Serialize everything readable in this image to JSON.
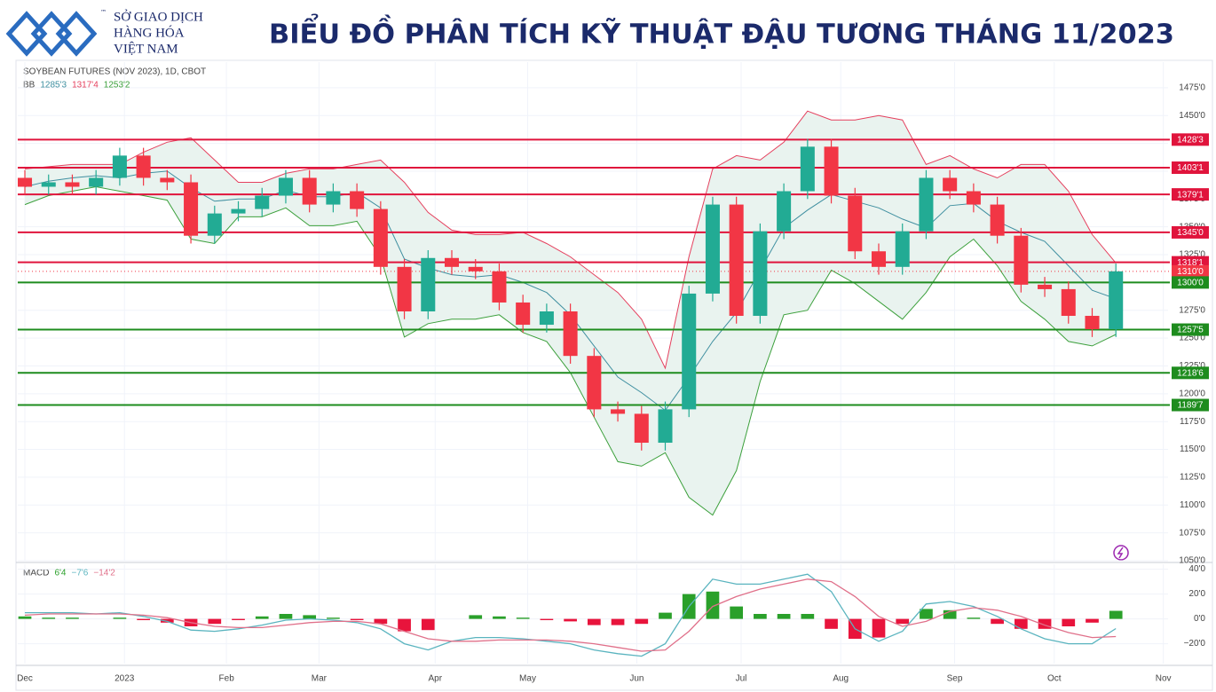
{
  "header": {
    "logo_lines": [
      "SỞ GIAO DỊCH",
      "HÀNG HÓA",
      "VIỆT NAM"
    ],
    "tm": "™",
    "title": "BIỂU ĐỒ PHÂN TÍCH KỸ THUẬT ĐẬU TƯƠNG THÁNG 11/2023"
  },
  "chart_data": [
    {
      "type": "candlestick",
      "title": "SOYBEAN FUTURES (NOV 2023), 1D, CBOT",
      "x": [
        0,
        1,
        2,
        3,
        4,
        5,
        6,
        7,
        8,
        9,
        10,
        11,
        12,
        13,
        14,
        15,
        16,
        17,
        18,
        19,
        20,
        21,
        22,
        23,
        24,
        25,
        26,
        27,
        28,
        29,
        30,
        31,
        32,
        33,
        34,
        35,
        36,
        37,
        38,
        39,
        40,
        41,
        42,
        43,
        44,
        45,
        46
      ],
      "xlim": [
        -0.3,
        48.2
      ],
      "xticks": [
        {
          "value": 0,
          "label": "Dec"
        },
        {
          "value": 4.2,
          "label": "2023"
        },
        {
          "value": 8.5,
          "label": "Feb"
        },
        {
          "value": 12.4,
          "label": "Mar"
        },
        {
          "value": 17.3,
          "label": "Apr"
        },
        {
          "value": 21.2,
          "label": "May"
        },
        {
          "value": 25.8,
          "label": "Jun"
        },
        {
          "value": 30.2,
          "label": "Jul"
        },
        {
          "value": 34.4,
          "label": "Aug"
        },
        {
          "value": 39.2,
          "label": "Sep"
        },
        {
          "value": 43.4,
          "label": "Oct"
        },
        {
          "value": 48,
          "label": "Nov"
        }
      ],
      "open": [
        1394,
        1386,
        1390,
        1386,
        1394,
        1414,
        1394,
        1390,
        1342,
        1362,
        1366,
        1378,
        1394,
        1370,
        1382,
        1366,
        1314,
        1274,
        1322,
        1314,
        1310,
        1282,
        1262,
        1274,
        1234,
        1186,
        1182,
        1156,
        1186,
        1290,
        1370,
        1270,
        1346,
        1382,
        1422,
        1378,
        1328,
        1314,
        1346,
        1394,
        1382,
        1370,
        1342,
        1298,
        1294,
        1270,
        1258
      ],
      "high": [
        1401,
        1397,
        1397,
        1401,
        1421,
        1421,
        1401,
        1397,
        1369,
        1373,
        1385,
        1401,
        1401,
        1389,
        1389,
        1373,
        1321,
        1329,
        1329,
        1321,
        1317,
        1289,
        1281,
        1281,
        1241,
        1193,
        1189,
        1193,
        1297,
        1377,
        1377,
        1353,
        1389,
        1429,
        1429,
        1385,
        1335,
        1353,
        1401,
        1401,
        1389,
        1377,
        1349,
        1305,
        1301,
        1277,
        1317
      ],
      "low": [
        1379,
        1379,
        1379,
        1379,
        1387,
        1387,
        1383,
        1335,
        1335,
        1355,
        1359,
        1371,
        1363,
        1363,
        1359,
        1307,
        1267,
        1267,
        1307,
        1303,
        1275,
        1255,
        1255,
        1227,
        1179,
        1175,
        1149,
        1149,
        1179,
        1283,
        1263,
        1263,
        1339,
        1375,
        1371,
        1321,
        1307,
        1307,
        1339,
        1375,
        1363,
        1335,
        1291,
        1287,
        1263,
        1251,
        1251
      ],
      "close": [
        1386,
        1390,
        1386,
        1394,
        1414,
        1394,
        1390,
        1342,
        1362,
        1366,
        1378,
        1394,
        1370,
        1382,
        1366,
        1314,
        1274,
        1322,
        1314,
        1310,
        1282,
        1262,
        1274,
        1234,
        1186,
        1182,
        1156,
        1186,
        1290,
        1370,
        1270,
        1346,
        1382,
        1422,
        1378,
        1328,
        1314,
        1346,
        1394,
        1382,
        1370,
        1342,
        1298,
        1294,
        1270,
        1258,
        1310
      ],
      "up_color": "#22ab94",
      "down_color": "#f23645",
      "ylim": [
        1050,
        1498
      ],
      "yticks": [
        {
          "value": 1050,
          "label": "1050'0"
        },
        {
          "value": 1075,
          "label": "1075'0"
        },
        {
          "value": 1100,
          "label": "1100'0"
        },
        {
          "value": 1125,
          "label": "1125'0"
        },
        {
          "value": 1150,
          "label": "1150'0"
        },
        {
          "value": 1175,
          "label": "1175'0"
        },
        {
          "value": 1200,
          "label": "1200'0"
        },
        {
          "value": 1225,
          "label": "1225'0"
        },
        {
          "value": 1250,
          "label": "1250'0"
        },
        {
          "value": 1275,
          "label": "1275'0"
        },
        {
          "value": 1300,
          "label": "1300'0"
        },
        {
          "value": 1325,
          "label": "1325'0"
        },
        {
          "value": 1350,
          "label": "1350'0"
        },
        {
          "value": 1375,
          "label": "1375'0"
        },
        {
          "value": 1400,
          "label": "1400'0"
        },
        {
          "value": 1425,
          "label": "1425'0"
        },
        {
          "value": 1450,
          "label": "1450'0"
        },
        {
          "value": 1475,
          "label": "1475'0"
        }
      ],
      "grid": true,
      "bands": {
        "label": "BB",
        "fill": "#e9f3ef",
        "series": [
          {
            "color": "#3f8fa0",
            "value_label": "1285'3",
            "values": [
              1386,
              1391,
              1394,
              1396,
              1394,
              1398,
              1400,
              1385,
              1373,
              1375,
              1375,
              1383,
              1377,
              1377,
              1381,
              1367,
              1321,
              1313,
              1307,
              1305,
              1307,
              1300,
              1291,
              1271,
              1243,
              1215,
              1201,
              1185,
              1215,
              1247,
              1273,
              1311,
              1349,
              1365,
              1379,
              1373,
              1367,
              1357,
              1349,
              1369,
              1371,
              1355,
              1345,
              1337,
              1315,
              1293,
              1285.375
            ]
          },
          {
            "color": "#e5405e",
            "value_label": "1317'4",
            "values": [
              1402,
              1404,
              1406,
              1406,
              1406,
              1417,
              1426,
              1430,
              1410,
              1390,
              1390,
              1398,
              1402,
              1402,
              1406,
              1410,
              1390,
              1363,
              1347,
              1343,
              1343,
              1345,
              1335,
              1323,
              1307,
              1291,
              1267,
              1223,
              1323,
              1402,
              1414,
              1410,
              1426,
              1454,
              1446,
              1446,
              1450,
              1446,
              1406,
              1414,
              1402,
              1394,
              1406,
              1406,
              1382,
              1343,
              1317.5
            ]
          },
          {
            "color": "#3ca03c",
            "value_label": "1253'2",
            "values": [
              1370,
              1378,
              1382,
              1386,
              1382,
              1378,
              1374,
              1339,
              1335,
              1359,
              1359,
              1367,
              1351,
              1351,
              1355,
              1323,
              1251,
              1263,
              1267,
              1267,
              1271,
              1255,
              1247,
              1219,
              1179,
              1139,
              1135,
              1147,
              1107,
              1091,
              1131,
              1211,
              1271,
              1275,
              1311,
              1299,
              1283,
              1267,
              1291,
              1323,
              1339,
              1315,
              1283,
              1267,
              1247,
              1243,
              1253.25
            ]
          }
        ]
      },
      "levels": [
        {
          "value": 1428.375,
          "label": "1428'3",
          "color": "#e0143c"
        },
        {
          "value": 1403.125,
          "label": "1403'1",
          "color": "#e0143c"
        },
        {
          "value": 1379.125,
          "label": "1379'1",
          "color": "#e0143c"
        },
        {
          "value": 1345,
          "label": "1345'0",
          "color": "#e0143c"
        },
        {
          "value": 1318.125,
          "label": "1318'1",
          "color": "#e0143c"
        },
        {
          "value": 1310,
          "label": "1310'0",
          "color": "#f23645",
          "dashed": true
        },
        {
          "value": 1300,
          "label": "1300'0",
          "color": "#1e8c1e"
        },
        {
          "value": 1257.625,
          "label": "1257'5",
          "color": "#1e8c1e"
        },
        {
          "value": 1218.75,
          "label": "1218'6",
          "color": "#1e8c1e"
        },
        {
          "value": 1189.875,
          "label": "1189'7",
          "color": "#1e8c1e"
        }
      ]
    },
    {
      "type": "macd",
      "title": "MACD",
      "ylim": [
        -36,
        44
      ],
      "yticks": [
        {
          "value": 40,
          "label": "40'0"
        },
        {
          "value": 20,
          "label": "20'0"
        },
        {
          "value": 0,
          "label": "0'0"
        },
        {
          "value": -20,
          "label": "−20'0"
        }
      ],
      "histogram": {
        "up_color": "#2aa02a",
        "down_color": "#e8143c",
        "value_label": "6'4",
        "values": [
          2,
          1,
          1,
          0,
          1,
          -1,
          -3,
          -6,
          -4,
          -1,
          2,
          4,
          3,
          1,
          -1,
          -4,
          -10,
          -9,
          0,
          3,
          2,
          1,
          -1,
          -2,
          -5,
          -5,
          -4,
          5,
          20,
          22,
          10,
          4,
          4,
          4,
          -8,
          -16,
          -15,
          -4,
          8,
          7,
          1,
          -4,
          -8,
          -8,
          -6,
          -3,
          6.5
        ]
      },
      "series": [
        {
          "color": "#5ab4bf",
          "value_label": "−7'6",
          "values": [
            5,
            5,
            5,
            4,
            5,
            2,
            -2,
            -9,
            -10,
            -8,
            -5,
            -1,
            0,
            -1,
            -3,
            -8,
            -20,
            -25,
            -18,
            -15,
            -15,
            -16,
            -18,
            -20,
            -25,
            -28,
            -30,
            -20,
            10,
            32,
            28,
            28,
            32,
            36,
            22,
            -8,
            -18,
            -10,
            12,
            14,
            10,
            2,
            -8,
            -16,
            -20,
            -20,
            -7.75
          ]
        },
        {
          "color": "#e0708a",
          "value_label": "−14'2",
          "values": [
            3,
            4,
            4,
            4,
            4,
            3,
            1,
            -3,
            -6,
            -7,
            -7,
            -5,
            -3,
            -2,
            -2,
            -4,
            -10,
            -16,
            -18,
            -18,
            -17,
            -17,
            -17,
            -18,
            -20,
            -23,
            -26,
            -25,
            -10,
            10,
            18,
            24,
            28,
            32,
            30,
            18,
            2,
            -6,
            -2,
            6,
            9,
            7,
            2,
            -5,
            -11,
            -15,
            -14.25
          ]
        }
      ]
    }
  ]
}
